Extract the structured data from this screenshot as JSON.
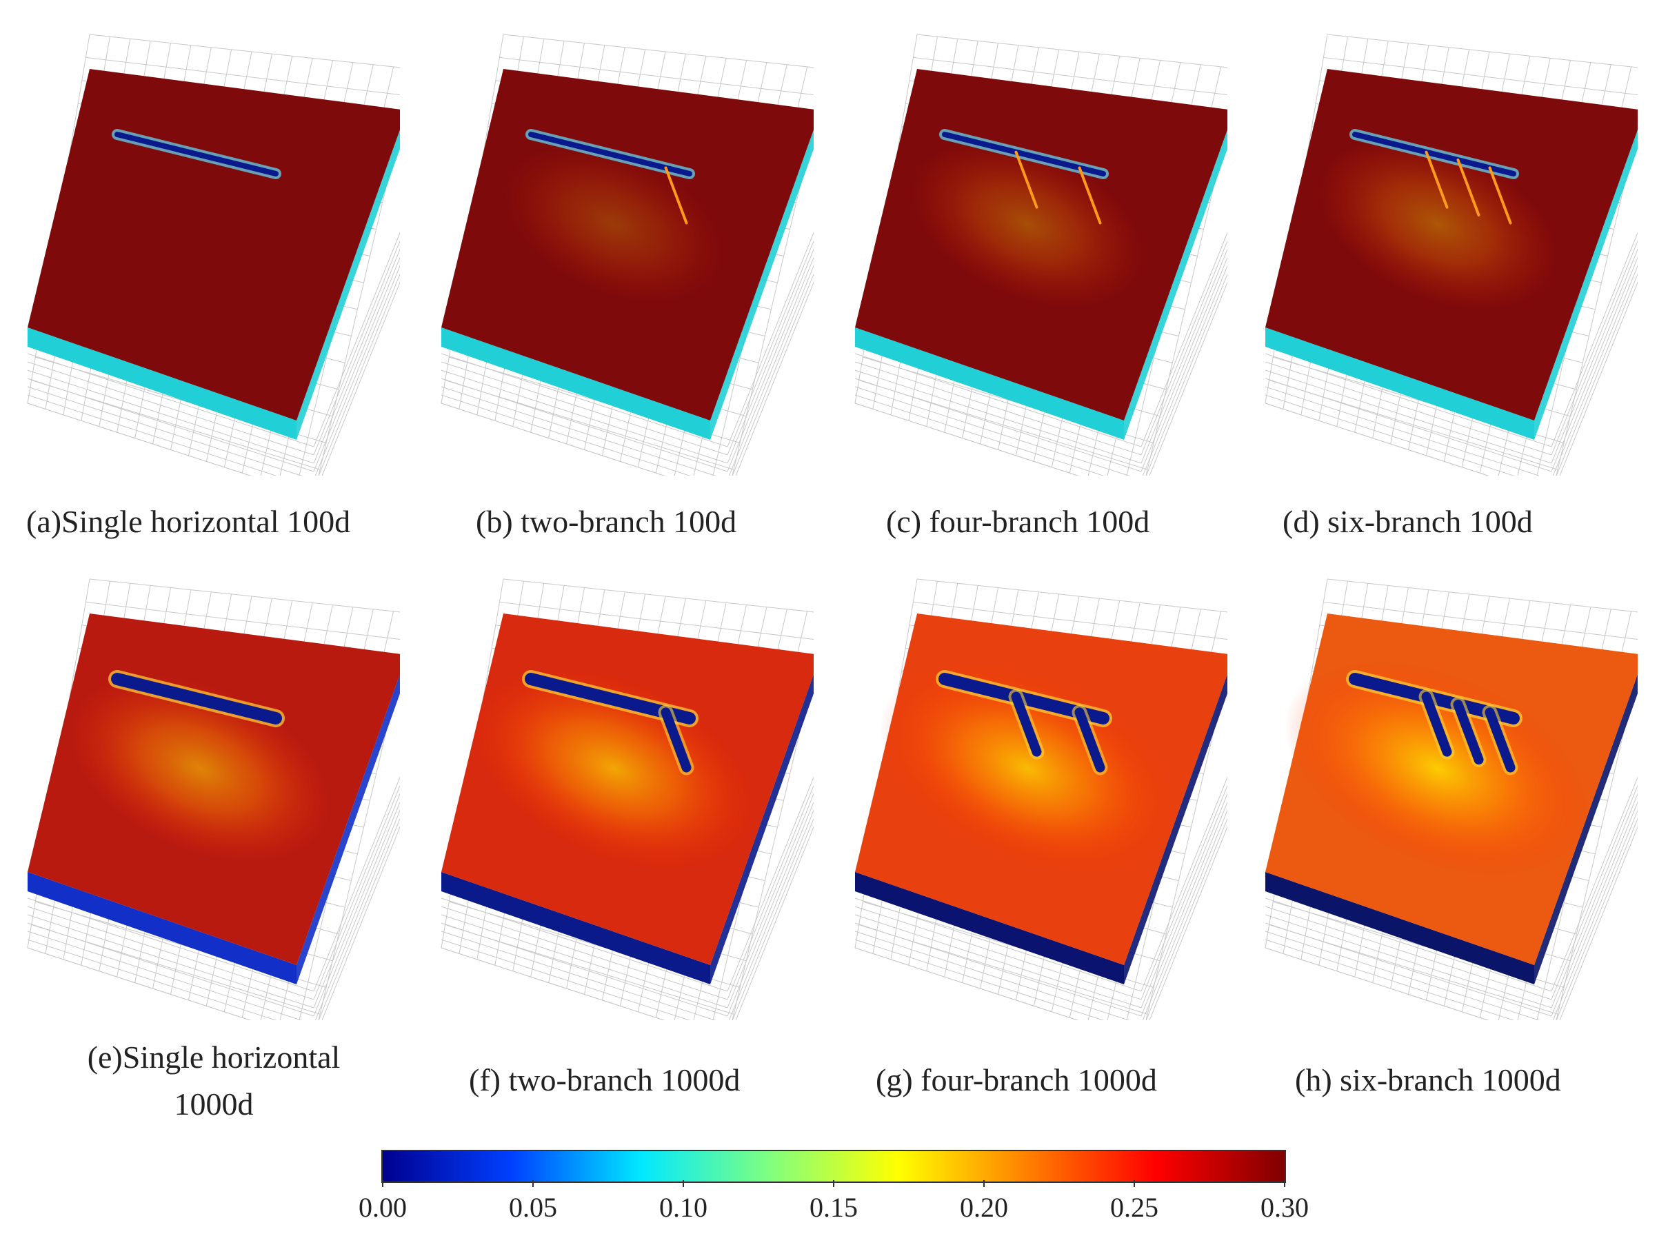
{
  "panels": [
    {
      "id": "a",
      "caption": "(a)Single horizontal 100d",
      "time": "100d",
      "branches": 0,
      "field": "#7e0a0b",
      "side": "#21cfd6",
      "halo": 0
    },
    {
      "id": "b",
      "caption": "(b) two-branch 100d",
      "time": "100d",
      "branches": 1,
      "field": "#7e0a0b",
      "side": "#21cfd6",
      "halo": 0.25
    },
    {
      "id": "c",
      "caption": "(c) four-branch 100d",
      "time": "100d",
      "branches": 2,
      "field": "#7e0a0b",
      "side": "#21cfd6",
      "halo": 0.35
    },
    {
      "id": "d",
      "caption": "(d)   six-branch 100d",
      "time": "100d",
      "branches": 3,
      "field": "#7e0a0b",
      "side": "#21cfd6",
      "halo": 0.4
    },
    {
      "id": "e",
      "caption": "(e)Single horizontal 1000d",
      "time": "1000d",
      "branches": 0,
      "field": "#b81a10",
      "side": "#1230c8",
      "halo": 0.6
    },
    {
      "id": "f",
      "caption": "(f) two-branch 1000d",
      "time": "1000d",
      "branches": 1,
      "field": "#d82a0e",
      "side": "#0b1a8a",
      "halo": 0.75
    },
    {
      "id": "g",
      "caption": "(g) four-branch 1000d",
      "time": "1000d",
      "branches": 2,
      "field": "#e8400e",
      "side": "#0a1470",
      "halo": 0.85
    },
    {
      "id": "h",
      "caption": "(h) six-branch 1000d",
      "time": "1000d",
      "branches": 3,
      "field": "#ec5a12",
      "side": "#0a1468",
      "halo": 0.95
    }
  ],
  "colorbar": {
    "ticks": [
      "0.00",
      "0.05",
      "0.10",
      "0.15",
      "0.20",
      "0.25",
      "0.30"
    ],
    "range": [
      0,
      0.3
    ],
    "colors": [
      "#00008f",
      "#0040ff",
      "#00e8ff",
      "#80ff80",
      "#ffff00",
      "#ff8000",
      "#ff0000",
      "#800000"
    ]
  }
}
